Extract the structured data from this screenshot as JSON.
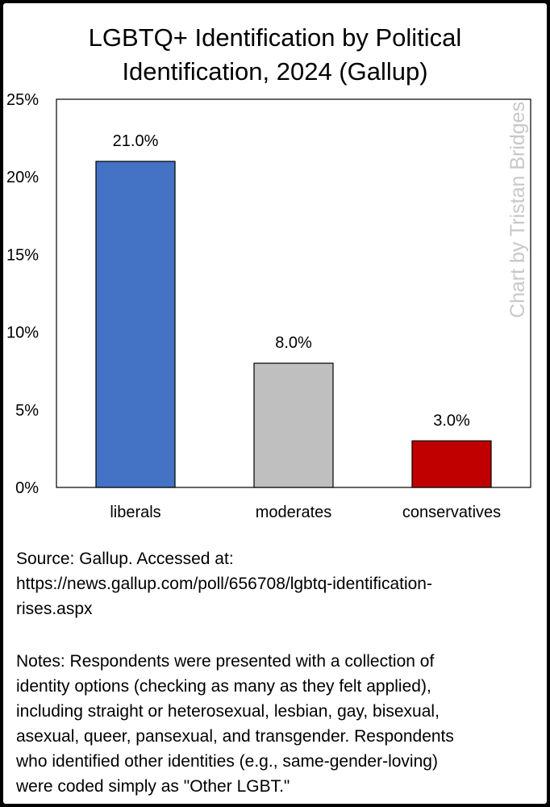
{
  "chart_data": {
    "type": "bar",
    "title": "LGBTQ+ Identification by Political\nIdentification, 2024 (Gallup)",
    "categories": [
      "liberals",
      "moderates",
      "conservatives"
    ],
    "values": [
      21.0,
      8.0,
      3.0
    ],
    "data_labels": [
      "21.0%",
      "8.0%",
      "3.0%"
    ],
    "colors": [
      "#4472C4",
      "#BFBFBF",
      "#C00000"
    ],
    "ylim": [
      0,
      25
    ],
    "y_ticks": [
      0,
      5,
      10,
      15,
      20,
      25
    ],
    "y_tick_labels": [
      "0%",
      "5%",
      "10%",
      "15%",
      "20%",
      "25%"
    ],
    "xlabel": "",
    "ylabel": "",
    "grid": false,
    "legend": "none",
    "watermark": "Chart by Tristan Bridges"
  },
  "footer": {
    "source_lines": [
      "Source: Gallup. Accessed at:",
      "https://news.gallup.com/poll/656708/lgbtq-identification-",
      "rises.aspx"
    ],
    "notes_lines": [
      "Notes: Respondents were presented with a collection of",
      "identity options (checking as many as they felt applied),",
      "including straight or heterosexual, lesbian, gay, bisexual,",
      "asexual, queer, pansexual, and transgender. Respondents",
      "who identified other identities (e.g., same-gender-loving)",
      "were  coded simply as \"Other LGBT.\""
    ]
  }
}
